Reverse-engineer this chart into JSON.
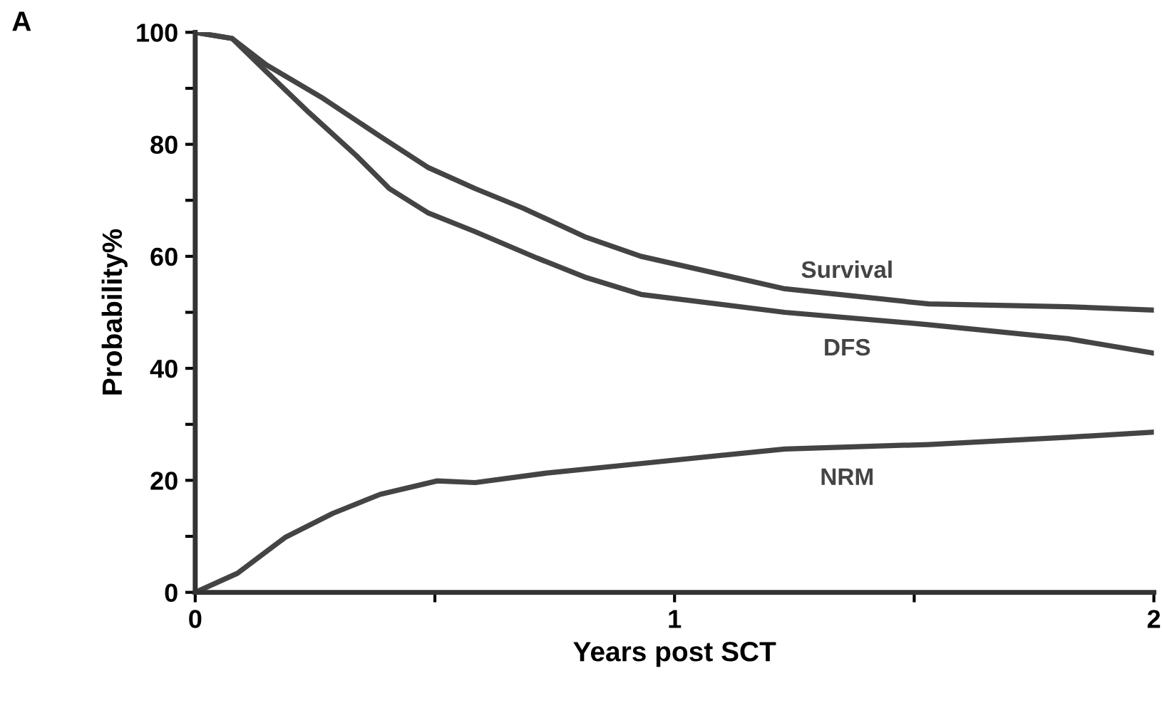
{
  "chart_data": {
    "type": "line",
    "xlabel": "Years post SCT",
    "ylabel": "Probability%",
    "xlim": [
      0,
      2
    ],
    "ylim": [
      0,
      100
    ],
    "xticks": [
      0,
      {
        "value": 0.5,
        "label": null
      },
      1,
      {
        "value": 1.5,
        "label": null
      },
      2
    ],
    "yticks": [
      0,
      {
        "value": 10,
        "label": null
      },
      20,
      {
        "value": 30,
        "label": null
      },
      40,
      {
        "value": 50,
        "label": null
      },
      60,
      {
        "value": 70,
        "label": null
      },
      80,
      {
        "value": 90,
        "label": null
      },
      100
    ],
    "grid": false,
    "legend": false,
    "marker": "none",
    "line_style": "solid",
    "series": [
      {
        "name": "Survival",
        "color": "#444444",
        "x": [
          0,
          0.077,
          0.148,
          0.267,
          0.386,
          0.485,
          0.584,
          0.684,
          0.8125,
          0.93,
          1.23,
          1.53,
          1.82,
          2.0
        ],
        "values": [
          100,
          98.9,
          94.2,
          88.2,
          81.4,
          75.9,
          72.1,
          68.6,
          63.5,
          60,
          54.2,
          51.5,
          51,
          50.4
        ]
      },
      {
        "name": "DFS",
        "color": "#444444",
        "x": [
          0,
          0.077,
          0.148,
          0.237,
          0.336,
          0.405,
          0.485,
          0.584,
          0.713,
          0.8125,
          0.93,
          1.23,
          1.53,
          1.82,
          2.0
        ],
        "values": [
          100,
          98.9,
          93,
          85.7,
          78,
          72.1,
          67.8,
          64.4,
          59.7,
          56.3,
          53.2,
          50,
          47.8,
          45.3,
          42.7
        ]
      },
      {
        "name": "NRM",
        "color": "#444444",
        "x": [
          0,
          0.088,
          0.1875,
          0.287,
          0.386,
          0.505,
          0.584,
          0.733,
          0.93,
          1.23,
          1.53,
          1.82,
          2.0
        ],
        "values": [
          0,
          3.4,
          9.8,
          14.1,
          17.5,
          19.9,
          19.6,
          21.3,
          23,
          25.6,
          26.4,
          27.7,
          28.6
        ]
      }
    ],
    "annotations": [
      "A"
    ]
  }
}
